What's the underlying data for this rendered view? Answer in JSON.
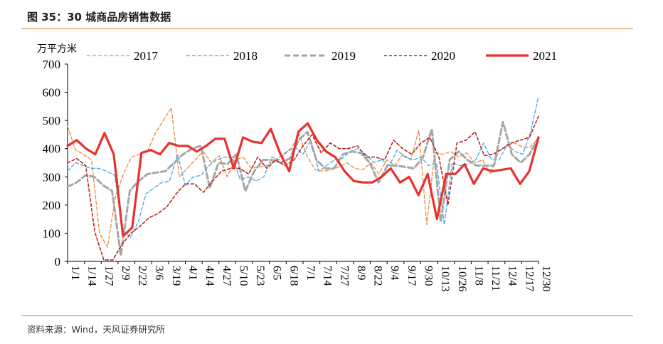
{
  "header": {
    "title": "图 35：30 城商品房销售数据"
  },
  "footer": {
    "source": "资料来源：Wind，天风证券研究所"
  },
  "colors": {
    "accent_rule": "#e07b25",
    "axis": "#000000"
  },
  "chart_data": {
    "type": "line",
    "ylabel": "万平方米",
    "ylim": [
      0,
      700
    ],
    "yticks": [
      0,
      100,
      200,
      300,
      400,
      500,
      600,
      700
    ],
    "x_tick_labels": [
      "1/1",
      "1/14",
      "1/27",
      "2/9",
      "2/22",
      "3/6",
      "3/19",
      "4/1",
      "4/14",
      "4/27",
      "5/10",
      "5/23",
      "6/5",
      "6/18",
      "7/1",
      "7/14",
      "7/27",
      "8/9",
      "8/22",
      "9/4",
      "9/17",
      "9/30",
      "10/13",
      "10/26",
      "11/8",
      "11/21",
      "12/4",
      "12/17",
      "12/30"
    ],
    "legend_position": "top",
    "grid": false,
    "series": [
      {
        "name": "2017",
        "color": "#ed8a3c",
        "dash": "5,3",
        "width": 1.3,
        "values": [
          480,
          395,
          380,
          360,
          100,
          50,
          230,
          310,
          370,
          380,
          390,
          455,
          500,
          545,
          300,
          330,
          360,
          390,
          350,
          375,
          300,
          360,
          370,
          330,
          335,
          340,
          360,
          380,
          400,
          450,
          375,
          325,
          320,
          325,
          335,
          350,
          330,
          325,
          350,
          310,
          360,
          340,
          380,
          360,
          465,
          130,
          385,
          380,
          390,
          370,
          385,
          350,
          360,
          310,
          390,
          410,
          420,
          405,
          405,
          440
        ]
      },
      {
        "name": "2018",
        "color": "#45a8e5",
        "dash": "5,3",
        "width": 1.3,
        "values": [
          320,
          350,
          340,
          330,
          330,
          320,
          305,
          115,
          85,
          140,
          240,
          260,
          280,
          285,
          380,
          270,
          300,
          305,
          340,
          360,
          370,
          370,
          290,
          300,
          285,
          300,
          370,
          360,
          390,
          405,
          380,
          430,
          320,
          340,
          360,
          365,
          390,
          400,
          380,
          350,
          360,
          340,
          395,
          370,
          360,
          370,
          340,
          350,
          130,
          350,
          340,
          345,
          360,
          420,
          360,
          360,
          415,
          390,
          380,
          460,
          585
        ]
      },
      {
        "name": "2019",
        "color": "#a6a6a6",
        "dash": "8,4",
        "width": 3,
        "values": [
          265,
          280,
          305,
          300,
          270,
          250,
          20,
          250,
          285,
          310,
          315,
          320,
          350,
          380,
          400,
          410,
          260,
          350,
          345,
          380,
          250,
          320,
          360,
          360,
          350,
          365,
          430,
          460,
          360,
          330,
          330,
          380,
          390,
          385,
          350,
          280,
          340,
          340,
          335,
          330,
          370,
          470,
          140,
          360,
          390,
          360,
          340,
          340,
          340,
          495,
          380,
          350,
          380,
          440
        ]
      },
      {
        "name": "2020",
        "color": "#b72525",
        "dash": "4,3",
        "width": 1.6,
        "values": [
          350,
          365,
          340,
          105,
          5,
          5,
          60,
          100,
          125,
          155,
          170,
          195,
          240,
          275,
          275,
          245,
          285,
          320,
          330,
          330,
          310,
          370,
          330,
          360,
          340,
          360,
          410,
          450,
          385,
          420,
          400,
          400,
          410,
          370,
          370,
          360,
          430,
          400,
          380,
          420,
          440,
          370,
          200,
          420,
          430,
          460,
          375,
          380,
          400,
          420,
          430,
          440,
          515
        ]
      },
      {
        "name": "2021",
        "color": "#e8322d",
        "dash": "",
        "width": 3.2,
        "values": [
          410,
          430,
          400,
          380,
          455,
          380,
          90,
          120,
          385,
          395,
          380,
          420,
          410,
          410,
          390,
          410,
          435,
          435,
          330,
          440,
          425,
          420,
          470,
          385,
          320,
          460,
          490,
          430,
          390,
          370,
          320,
          285,
          280,
          280,
          300,
          330,
          280,
          300,
          235,
          310,
          150,
          310,
          310,
          345,
          275,
          330,
          320,
          325,
          330,
          275,
          320,
          440
        ]
      }
    ]
  }
}
